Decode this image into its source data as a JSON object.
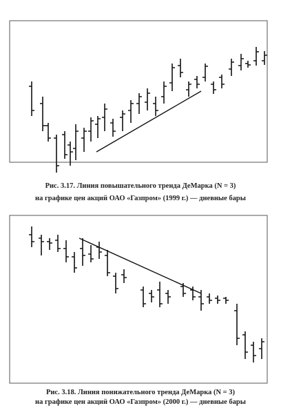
{
  "figures": [
    {
      "caption": [
        "Рис. 3.17. Линия повышательного тренда ДеМарка (N = 3)",
        "на графике цен акций ОАО «Газпром» (1999 г.) — дневные бары"
      ]
    },
    {
      "caption": [
        "Рис. 3.18. Линия понижательного тренда ДеМарка (N = 3)",
        "на графике цен акций ОАО «Газпром» (2000 г.) — дневные бары"
      ]
    }
  ]
}
